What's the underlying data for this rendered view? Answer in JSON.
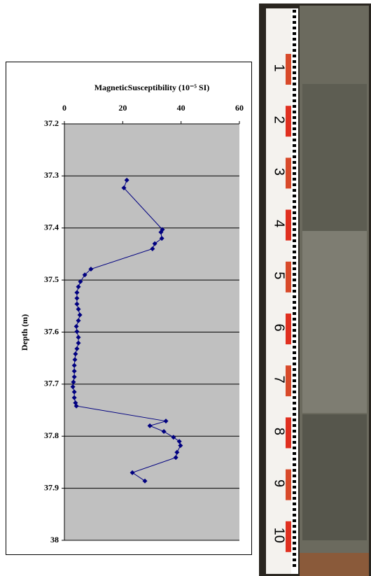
{
  "chart_data": {
    "type": "line",
    "title": "MagneticSusceptibility (10⁻⁵ SI)",
    "y_label": "Depth (m)",
    "xlim": [
      0,
      60
    ],
    "xticks": [
      0,
      20,
      40,
      60
    ],
    "ylim": [
      37.2,
      38
    ],
    "yticks": [
      37.2,
      37.3,
      37.4,
      37.5,
      37.6,
      37.7,
      37.8,
      37.9,
      38
    ],
    "y_inverted": true,
    "x_axis_top": true,
    "grid": true,
    "background": "#c0c0c0",
    "series": [
      {
        "color": "#000080",
        "x": [
          21.4,
          20.4,
          33.6,
          33.1,
          33.4,
          31.0,
          30.2,
          9.1,
          7.0,
          5.5,
          4.8,
          4.3,
          4.3,
          4.3,
          4.8,
          5.3,
          4.8,
          4.1,
          4.3,
          4.8,
          4.8,
          4.3,
          3.8,
          3.6,
          3.4,
          3.4,
          3.4,
          3.1,
          2.9,
          3.4,
          3.4,
          3.8,
          4.1,
          34.8,
          29.3,
          34.1,
          37.4,
          39.4,
          39.8,
          38.6,
          38.2,
          23.3,
          27.6
        ],
        "y": [
          37.308,
          37.323,
          37.403,
          37.408,
          37.42,
          37.43,
          37.44,
          37.479,
          37.49,
          37.503,
          37.513,
          37.524,
          37.535,
          37.546,
          37.556,
          37.567,
          37.578,
          37.589,
          37.599,
          37.61,
          37.621,
          37.632,
          37.642,
          37.653,
          37.664,
          37.675,
          37.686,
          37.696,
          37.705,
          37.715,
          37.726,
          37.736,
          37.742,
          37.771,
          37.78,
          37.791,
          37.802,
          37.81,
          37.818,
          37.831,
          37.841,
          37.87,
          37.886
        ]
      }
    ]
  },
  "photo": {
    "ruler_labels": [
      "1",
      "2",
      "3",
      "4",
      "5",
      "6",
      "7",
      "8",
      "9",
      "10"
    ]
  }
}
